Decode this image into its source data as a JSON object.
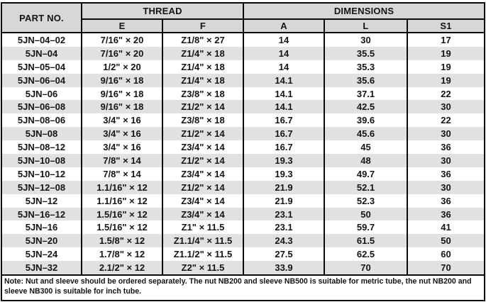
{
  "table": {
    "part_no_header": "PART NO.",
    "thread_header": "THREAD",
    "dimensions_header": "DIMENSIONS",
    "sub_headers": [
      "E",
      "F",
      "A",
      "L",
      "S1"
    ],
    "rows": [
      {
        "part_no": "5JN–04–02",
        "e": "7/16\" × 20",
        "f": "Z1/8\" × 27",
        "a": "14",
        "l": "30",
        "s1": "17"
      },
      {
        "part_no": "5JN–04",
        "e": "7/16\" × 20",
        "f": "Z1/4\" × 18",
        "a": "14",
        "l": "35.5",
        "s1": "19"
      },
      {
        "part_no": "5JN–05–04",
        "e": "1/2\" × 20",
        "f": "Z1/4\" × 18",
        "a": "14",
        "l": "35.3",
        "s1": "19"
      },
      {
        "part_no": "5JN–06–04",
        "e": "9/16\" × 18",
        "f": "Z1/4\" × 18",
        "a": "14.1",
        "l": "35.6",
        "s1": "19"
      },
      {
        "part_no": "5JN–06",
        "e": "9/16\" × 18",
        "f": "Z3/8\" × 18",
        "a": "14.1",
        "l": "37.1",
        "s1": "22"
      },
      {
        "part_no": "5JN–06–08",
        "e": "9/16\" × 18",
        "f": "Z1/2\" × 14",
        "a": "14.1",
        "l": "42.5",
        "s1": "30"
      },
      {
        "part_no": "5JN–08–06",
        "e": "3/4\" × 16",
        "f": "Z3/8\" × 18",
        "a": "16.7",
        "l": "39.6",
        "s1": "22"
      },
      {
        "part_no": "5JN–08",
        "e": "3/4\" × 16",
        "f": "Z1/2\" × 14",
        "a": "16.7",
        "l": "45.6",
        "s1": "30"
      },
      {
        "part_no": "5JN–08–12",
        "e": "3/4\" × 16",
        "f": "Z3/4\" × 14",
        "a": "16.7",
        "l": "45",
        "s1": "36"
      },
      {
        "part_no": "5JN–10–08",
        "e": "7/8\" × 14",
        "f": "Z1/2\" × 14",
        "a": "19.3",
        "l": "48",
        "s1": "30"
      },
      {
        "part_no": "5JN–10–12",
        "e": "7/8\" × 14",
        "f": "Z3/4\" × 14",
        "a": "19.3",
        "l": "49.7",
        "s1": "36"
      },
      {
        "part_no": "5JN–12–08",
        "e": "1.1/16\" × 12",
        "f": "Z1/2\" × 14",
        "a": "21.9",
        "l": "52.1",
        "s1": "30"
      },
      {
        "part_no": "5JN–12",
        "e": "1.1/16\" × 12",
        "f": "Z3/4\" × 14",
        "a": "21.9",
        "l": "52.3",
        "s1": "36"
      },
      {
        "part_no": "5JN–16–12",
        "e": "1.5/16\" × 12",
        "f": "Z3/4\" × 14",
        "a": "23.1",
        "l": "50",
        "s1": "36"
      },
      {
        "part_no": "5JN–16",
        "e": "1.5/16\" × 12",
        "f": "Z1\" × 11.5",
        "a": "23.1",
        "l": "59.7",
        "s1": "41"
      },
      {
        "part_no": "5JN–20",
        "e": "1.5/8\" × 12",
        "f": "Z1.1/4\" × 11.5",
        "a": "24.3",
        "l": "61.5",
        "s1": "50"
      },
      {
        "part_no": "5JN–24",
        "e": "1.7/8\" × 12",
        "f": "Z1.1/2\" × 11.5",
        "a": "27.5",
        "l": "62.5",
        "s1": "60"
      },
      {
        "part_no": "5JN–32",
        "e": "2.1/2\" × 12",
        "f": "Z2\" × 11.5",
        "a": "33.9",
        "l": "70",
        "s1": "70"
      }
    ],
    "note": "Note: Nut and sleeve should be ordered separately. The nut NB200 and sleeve NB500 is suitable for metric tube, the nut NB200 and sleeve NB300 is suitable for inch tube."
  },
  "colors": {
    "header_bg": "#d7d7d7",
    "stripe_bg": "#e1e1e1",
    "border": "#0a0a0a",
    "text": "#141414"
  }
}
